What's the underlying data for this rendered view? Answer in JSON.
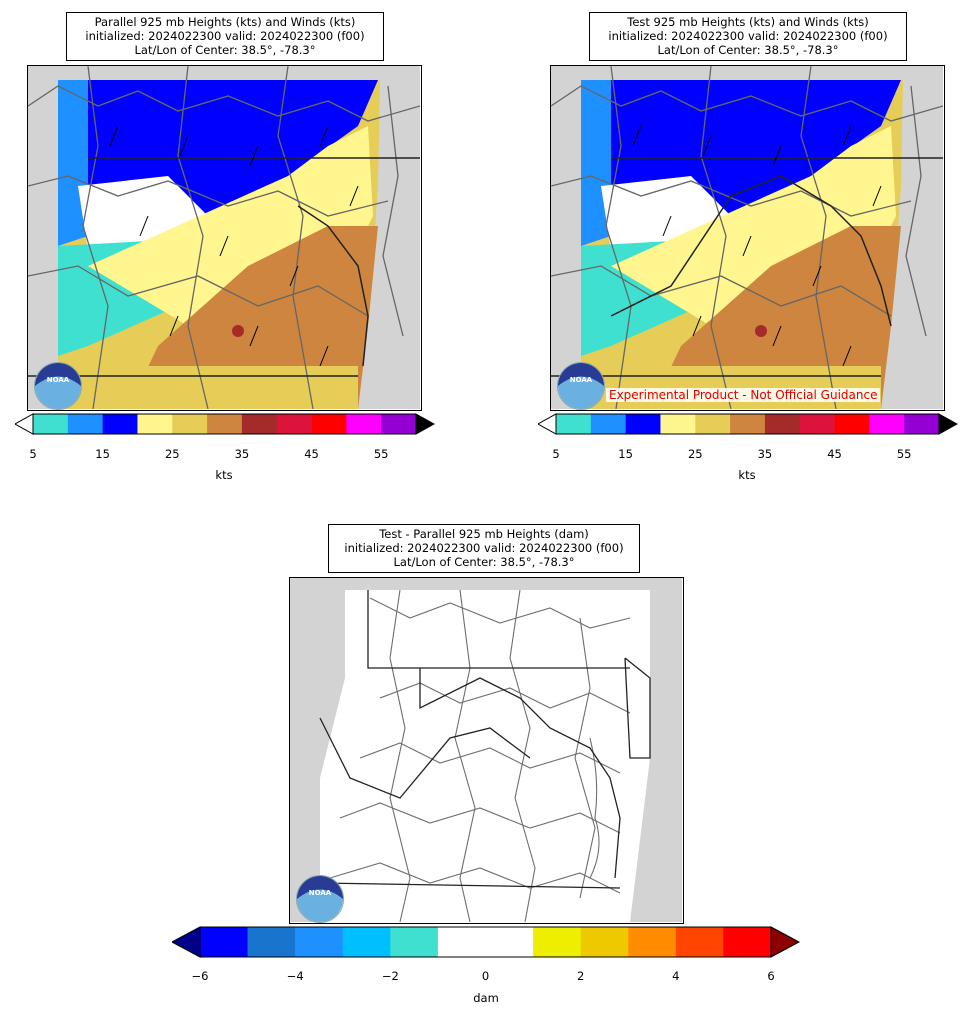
{
  "panels": [
    {
      "title_lines": [
        "Parallel 925 mb Heights (kts) and Winds (kts)",
        "initialized: 2024022300 valid: 2024022300 (f00)",
        "Lat/Lon of Center: 38.5°, -78.3°"
      ],
      "colorbar_label": "kts",
      "colorbar_ticks": [
        "5",
        "15",
        "25",
        "35",
        "45",
        "55"
      ],
      "colorbar_colors": [
        "#40e0d0",
        "#1e90ff",
        "#0000ff",
        "#fff68f",
        "#e5cd57",
        "#cd853f",
        "#a52a2a",
        "#dc143c",
        "#ff0000",
        "#ff00ff",
        "#9400d3"
      ],
      "logo_text": "NOAA"
    },
    {
      "title_lines": [
        "Test 925 mb Heights (kts) and Winds (kts)",
        "initialized: 2024022300 valid: 2024022300 (f00)",
        "Lat/Lon of Center: 38.5°, -78.3°"
      ],
      "colorbar_label": "kts",
      "colorbar_ticks": [
        "5",
        "15",
        "25",
        "35",
        "45",
        "55"
      ],
      "colorbar_colors": [
        "#40e0d0",
        "#1e90ff",
        "#0000ff",
        "#fff68f",
        "#e5cd57",
        "#cd853f",
        "#a52a2a",
        "#dc143c",
        "#ff0000",
        "#ff00ff",
        "#9400d3"
      ],
      "banner": "Experimental Product - Not Official Guidance",
      "logo_text": "NOAA"
    },
    {
      "title_lines": [
        "Test - Parallel 925 mb Heights (dam)",
        "initialized: 2024022300 valid: 2024022300 (f00)",
        "Lat/Lon of Center: 38.5°, -78.3°"
      ],
      "colorbar_label": "dam",
      "colorbar_ticks": [
        "−6",
        "−4",
        "−2",
        "0",
        "2",
        "4",
        "6"
      ],
      "colorbar_colors": [
        "#0000ff",
        "#1874cd",
        "#1e90ff",
        "#00bfff",
        "#40e0d0",
        "#ffffff",
        "#ffffff",
        "#eeee00",
        "#eec900",
        "#ff8c00",
        "#ff4500",
        "#ff0000"
      ],
      "extend_low_color": "#00008b",
      "extend_high_color": "#8b0000",
      "logo_text": "NOAA"
    }
  ]
}
